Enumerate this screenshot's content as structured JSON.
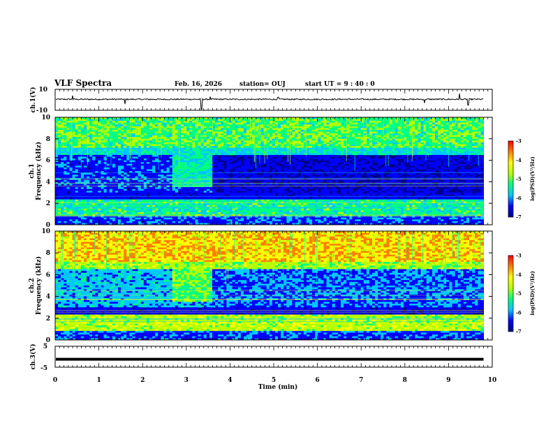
{
  "header": {
    "title": "VLF Spectra",
    "date": "Feb. 16, 2026",
    "station": "station= OUJ",
    "start": "start  UT =  9 : 40 : 0"
  },
  "colors": {
    "colormap": [
      "#00008b",
      "#0000ff",
      "#00c8ff",
      "#00ff80",
      "#b4ff00",
      "#ffff00",
      "#ff7f00",
      "#ff0000",
      "#ffffff"
    ]
  },
  "chart_data": [
    {
      "id": "ch1-waveform",
      "type": "line",
      "ylabel": "ch.1(V)",
      "ylim": [
        -10,
        10
      ],
      "yticks": [
        "10",
        "-10"
      ],
      "baseline": 0.5,
      "spikes": [
        [
          0.4,
          4
        ],
        [
          1.6,
          -4
        ],
        [
          3.35,
          -9
        ],
        [
          3.55,
          3
        ],
        [
          5.1,
          2.5
        ],
        [
          8.45,
          -3
        ],
        [
          9.25,
          6
        ],
        [
          9.45,
          -5
        ]
      ]
    },
    {
      "id": "ch1-spectrogram",
      "type": "heatmap",
      "ylabel_top": "ch.1",
      "ylabel": "Frequency (kHz)",
      "ylim": [
        0,
        10
      ],
      "yticks": [
        "0",
        "2",
        "4",
        "6",
        "8",
        "10"
      ],
      "colorbar": {
        "label": "log(PSD)(V²/Hz)",
        "range": [
          -7,
          -3
        ],
        "ticks": [
          "-3",
          "-4",
          "-5",
          "-6",
          "-7"
        ]
      }
    },
    {
      "id": "ch2-spectrogram",
      "type": "heatmap",
      "ylabel_top": "ch.2",
      "ylabel": "Frequency (kHz)",
      "ylim": [
        0,
        10
      ],
      "yticks": [
        "0",
        "2",
        "4",
        "6",
        "8",
        "10"
      ],
      "colorbar": {
        "label": "log(PSD)(V²/Hz)",
        "range": [
          -7,
          -3
        ],
        "ticks": [
          "-3",
          "-4",
          "-5",
          "-6",
          "-7"
        ]
      }
    },
    {
      "id": "ch3-waveform",
      "type": "line",
      "ylabel": "ch.3(V)",
      "ylim": [
        -5,
        5
      ],
      "yticks": [
        "5",
        "-5"
      ],
      "baseline": -1.2
    }
  ],
  "xaxis": {
    "label": "Time (min)",
    "range": [
      0,
      10
    ],
    "ticks": [
      "0",
      "1",
      "2",
      "3",
      "4",
      "5",
      "6",
      "7",
      "8",
      "9",
      "10"
    ],
    "data_end": 9.8
  }
}
